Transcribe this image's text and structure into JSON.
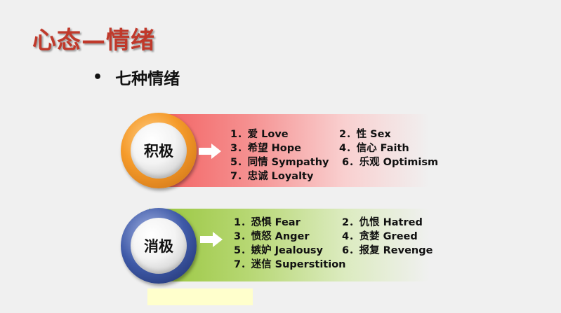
{
  "title": "心态—情绪",
  "bullet": "七种情绪",
  "positive": {
    "label": "积极",
    "items": [
      "1．爱 Love",
      "2．性 Sex",
      "3．希望 Hope",
      "4．信心 Faith",
      "5．同情 Sympathy",
      "6．乐观 Optimism",
      "7．忠诚 Loyalty"
    ]
  },
  "negative": {
    "label": "消极",
    "items": [
      "1．恐惧 Fear",
      "2．仇恨 Hatred",
      "3．愤怒 Anger",
      "4．贪婪 Greed",
      "5．嫉妒 Jealousy",
      "6．报复 Revenge",
      "7．迷信 Superstition"
    ]
  },
  "colors": {
    "title": "#c0392b",
    "positive_band": "#f25d5d",
    "negative_band": "#97c53b",
    "positive_ring": "#f59b2b",
    "negative_ring": "#3f5aa8"
  },
  "icons": {
    "arrow": "arrow-right-icon",
    "bullet": "bullet-dot"
  }
}
